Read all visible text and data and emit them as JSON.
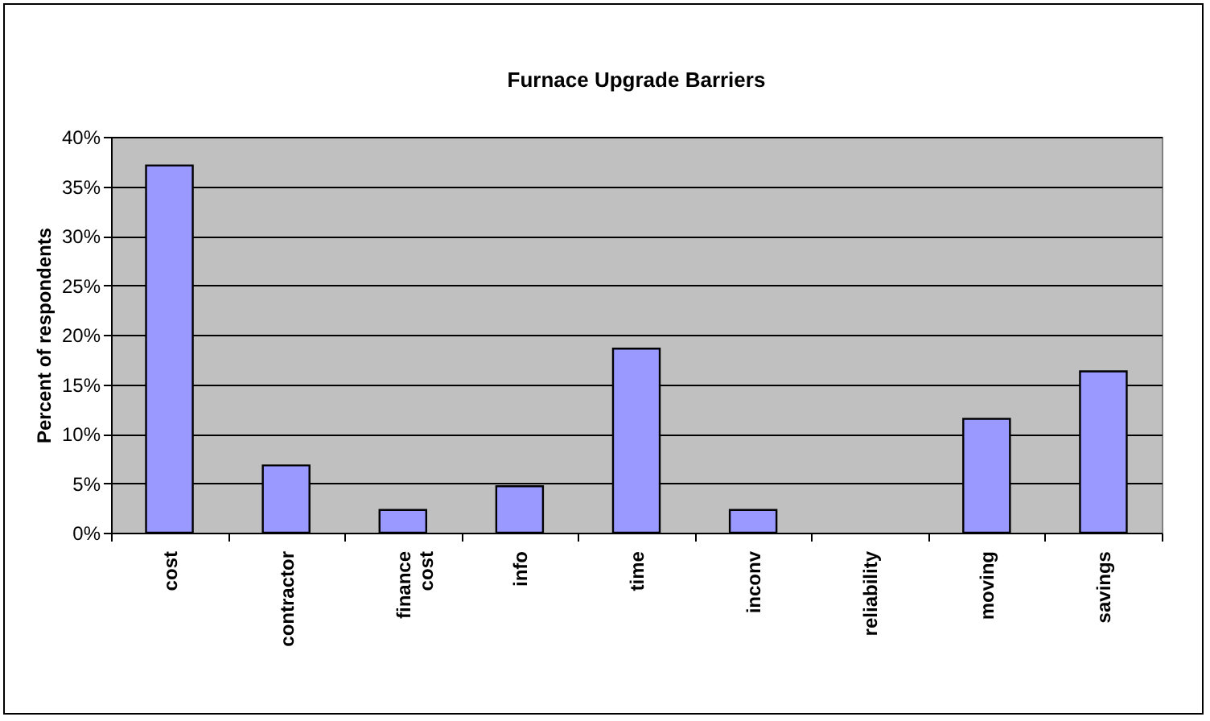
{
  "chart_data": {
    "type": "bar",
    "title": "Furnace Upgrade Barriers",
    "ylabel": "Percent of respondents",
    "categories": [
      "cost",
      "contractor",
      "finance cost",
      "info",
      "time",
      "inconv",
      "reliability",
      "moving",
      "savings"
    ],
    "values": [
      37.1,
      6.8,
      2.3,
      4.7,
      18.6,
      2.3,
      0,
      11.5,
      16.3
    ],
    "color": "#9999ff",
    "ylim": [
      0,
      40
    ],
    "yticks": [
      {
        "value": 0,
        "label": "0%"
      },
      {
        "value": 5,
        "label": "5%"
      },
      {
        "value": 10,
        "label": "10%"
      },
      {
        "value": 15,
        "label": "15%"
      },
      {
        "value": 20,
        "label": "20%"
      },
      {
        "value": 25,
        "label": "25%"
      },
      {
        "value": 30,
        "label": "30%"
      },
      {
        "value": 35,
        "label": "35%"
      },
      {
        "value": 40,
        "label": "40%"
      }
    ],
    "grid": "y"
  }
}
